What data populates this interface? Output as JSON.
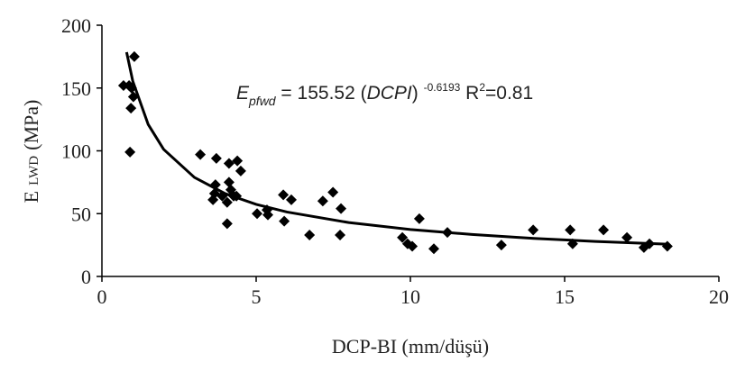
{
  "chart_data": {
    "type": "scatter",
    "x_label": "DCP-BI (mm/düşü)",
    "y_label_parts": [
      "E",
      "LWD",
      "(MPa)"
    ],
    "annotation_parts": [
      "E",
      "pfwd",
      " = 155.52 (",
      "DCPI",
      ") ",
      "-0.6193",
      " R",
      "2",
      "=0.81"
    ],
    "xlim": [
      0,
      20
    ],
    "ylim": [
      0,
      200
    ],
    "xticks": [
      0,
      5,
      10,
      15,
      20
    ],
    "yticks": [
      0,
      50,
      100,
      150,
      200
    ],
    "grid": false,
    "series": [
      {
        "color": "#000000",
        "x": [
          0.7,
          0.88,
          1.05,
          0.96,
          0.94,
          1.02,
          0.91,
          3.19,
          3.71,
          4.12,
          4.39,
          4.5,
          3.68,
          3.65,
          3.6,
          3.9,
          4.06,
          4.12,
          4.18,
          4.27,
          4.06,
          4.36,
          5.03,
          5.35,
          5.38,
          5.88,
          6.14,
          5.91,
          6.73,
          7.16,
          7.49,
          7.75,
          7.72,
          9.74,
          9.91,
          10.06,
          10.29,
          10.76,
          11.2,
          12.95,
          13.98,
          15.18,
          15.26,
          16.26,
          17.02,
          17.57,
          17.75,
          18.33
        ],
        "values": [
          152,
          152,
          175,
          150,
          134,
          143,
          99,
          97,
          94,
          90,
          92,
          84,
          73,
          66,
          61,
          64,
          59,
          75,
          69,
          64,
          42,
          64,
          50,
          53,
          49,
          65,
          61,
          44,
          33,
          60,
          67,
          54,
          33,
          31,
          26,
          24,
          46,
          22,
          35,
          25,
          37,
          37,
          26,
          37,
          31,
          23,
          26,
          24
        ]
      }
    ],
    "trend": {
      "color": "#000000",
      "x": [
        0.8,
        1,
        1.5,
        2,
        3,
        4,
        5,
        6,
        8,
        10,
        12,
        14,
        16,
        18.3
      ],
      "values": [
        178.5,
        155.5,
        121.0,
        101.2,
        78.8,
        65.9,
        57.4,
        51.3,
        42.9,
        37.4,
        33.4,
        30.3,
        27.9,
        25.7
      ]
    }
  }
}
